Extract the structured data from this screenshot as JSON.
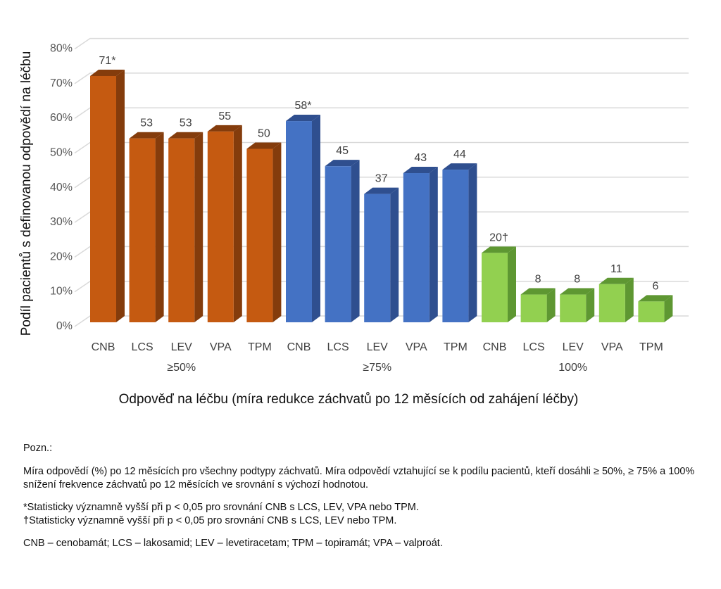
{
  "chart_data": {
    "type": "bar",
    "style": "3d-clustered-column",
    "ylabel": "Podíl pacientů s definovanou odpovědí na léčbu",
    "xlabel": "Odpověď na léčbu (míra redukce záchvatů po 12 měsících od zahájení léčby)",
    "ylim": [
      0,
      80
    ],
    "yticks": [
      "0%",
      "10%",
      "20%",
      "30%",
      "40%",
      "50%",
      "60%",
      "70%",
      "80%"
    ],
    "grid": true,
    "groups": [
      {
        "name": "≥50%",
        "color": "#C55A11",
        "side": "#843C0C",
        "bars": [
          {
            "cat": "CNB",
            "value": 71,
            "label": "71*"
          },
          {
            "cat": "LCS",
            "value": 53,
            "label": "53"
          },
          {
            "cat": "LEV",
            "value": 53,
            "label": "53"
          },
          {
            "cat": "VPA",
            "value": 55,
            "label": "55"
          },
          {
            "cat": "TPM",
            "value": 50,
            "label": "50"
          }
        ]
      },
      {
        "name": "≥75%",
        "color": "#4472C4",
        "side": "#2F4F8F",
        "bars": [
          {
            "cat": "CNB",
            "value": 58,
            "label": "58*"
          },
          {
            "cat": "LCS",
            "value": 45,
            "label": "45"
          },
          {
            "cat": "LEV",
            "value": 37,
            "label": "37"
          },
          {
            "cat": "VPA",
            "value": 43,
            "label": "43"
          },
          {
            "cat": "TPM",
            "value": 44,
            "label": "44"
          }
        ]
      },
      {
        "name": "100%",
        "color": "#92D050",
        "side": "#5E9732",
        "bars": [
          {
            "cat": "CNB",
            "value": 20,
            "label": "20†"
          },
          {
            "cat": "LCS",
            "value": 8,
            "label": "8"
          },
          {
            "cat": "LEV",
            "value": 8,
            "label": "8"
          },
          {
            "cat": "VPA",
            "value": 11,
            "label": "11"
          },
          {
            "cat": "TPM",
            "value": 6,
            "label": "6"
          }
        ]
      }
    ]
  },
  "notes": {
    "heading": "Pozn.:",
    "description": "Míra odpovědí (%) po 12 měsících pro všechny podtypy záchvatů. Míra odpovědí vztahující se k podílu pacientů, kteří dosáhli ≥ 50%, ≥ 75% a 100% snížení frekvence záchvatů po 12 měsících ve srovnání s výchozí hodnotou.",
    "footnote_star": "*Statisticky významně vyšší při p < 0,05 pro srovnání CNB s LCS, LEV, VPA nebo TPM.",
    "footnote_dagger": "†Statisticky významně vyšší při p < 0,05 pro srovnání CNB s LCS, LEV nebo TPM.",
    "abbreviations": "CNB – cenobamát; LCS – lakosamid; LEV – levetiracetam; TPM – topiramát; VPA – valproát."
  }
}
